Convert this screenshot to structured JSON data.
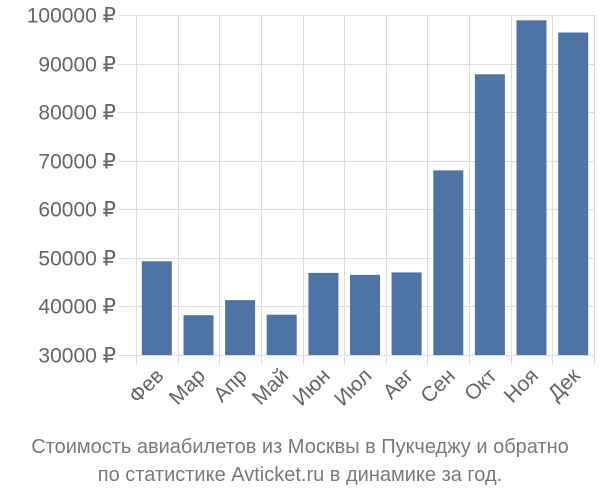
{
  "chart_data": {
    "type": "bar",
    "categories": [
      "Фев",
      "Мар",
      "Апр",
      "Май",
      "Июн",
      "Июл",
      "Авг",
      "Сен",
      "Окт",
      "Ноя",
      "Дек"
    ],
    "values": [
      49300,
      38200,
      41300,
      38300,
      46900,
      46500,
      47000,
      68000,
      87800,
      98900,
      96400
    ],
    "ylim": [
      30000,
      100000
    ],
    "yticks": [
      30000,
      40000,
      50000,
      60000,
      70000,
      80000,
      90000,
      100000
    ],
    "ytick_labels": [
      "30000 ₽",
      "40000 ₽",
      "50000 ₽",
      "60000 ₽",
      "70000 ₽",
      "80000 ₽",
      "90000 ₽",
      "100000 ₽"
    ],
    "grid": true,
    "bar_color": "#4e74a6",
    "grid_color": "#dddddd"
  },
  "caption": {
    "line1": "Стоимость авиабилетов из Москвы в Пукчеджу и обратно",
    "line2": "по статистике Avticket.ru в динамике за год."
  }
}
